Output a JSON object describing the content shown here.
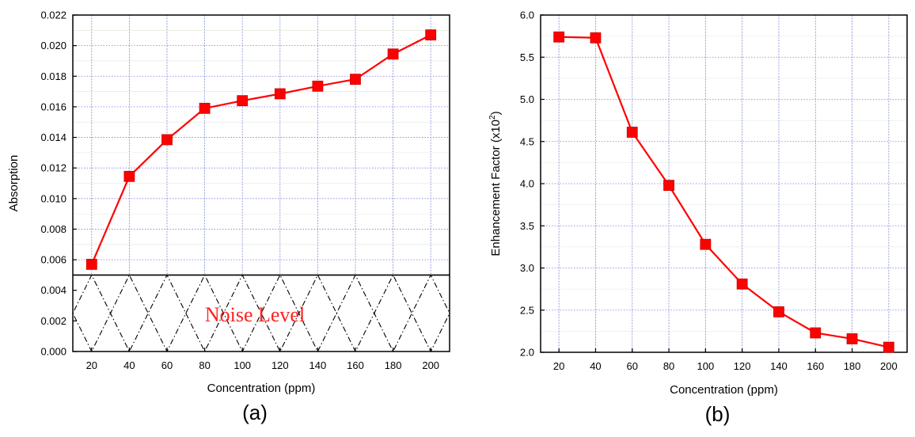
{
  "chart_data": [
    {
      "type": "line",
      "panel_label": "(a)",
      "xlabel": "Concentration (ppm)",
      "ylabel": "Absorption",
      "xlim": [
        10,
        210
      ],
      "ylim": [
        0.0,
        0.022
      ],
      "x_ticks": [
        "20",
        "40",
        "60",
        "80",
        "100",
        "120",
        "140",
        "160",
        "180",
        "200"
      ],
      "y_ticks": [
        "0.000",
        "0.002",
        "0.004",
        "0.006",
        "0.008",
        "0.010",
        "0.012",
        "0.014",
        "0.016",
        "0.018",
        "0.020",
        "0.022"
      ],
      "grid": true,
      "series": [
        {
          "x": [
            20,
            40,
            60,
            80,
            100,
            120,
            140,
            160,
            180,
            200
          ],
          "values": [
            0.0057,
            0.01145,
            0.01385,
            0.0159,
            0.0164,
            0.01685,
            0.01735,
            0.0178,
            0.01945,
            0.0207
          ],
          "color": "#ff0000",
          "marker": "square"
        }
      ],
      "noise_level": {
        "label": "Noise Level",
        "y": 0.005,
        "label_color": "#ff2020"
      }
    },
    {
      "type": "line",
      "panel_label": "(b)",
      "xlabel": "Concentration (ppm)",
      "ylabel": "Enhancement Factor (x10",
      "ylabel_superscript": "2",
      "ylabel_suffix": ")",
      "xlim": [
        10,
        210
      ],
      "ylim": [
        2.0,
        6.0
      ],
      "x_ticks": [
        "20",
        "40",
        "60",
        "80",
        "100",
        "120",
        "140",
        "160",
        "180",
        "200"
      ],
      "y_ticks": [
        "2.0",
        "2.5",
        "3.0",
        "3.5",
        "4.0",
        "4.5",
        "5.0",
        "5.5",
        "6.0"
      ],
      "grid": true,
      "series": [
        {
          "x": [
            20,
            40,
            60,
            80,
            100,
            120,
            140,
            160,
            180,
            200
          ],
          "values": [
            5.74,
            5.73,
            4.61,
            3.98,
            3.28,
            2.81,
            2.48,
            2.23,
            2.16,
            2.06
          ],
          "color": "#ff0000",
          "marker": "square"
        }
      ]
    }
  ]
}
